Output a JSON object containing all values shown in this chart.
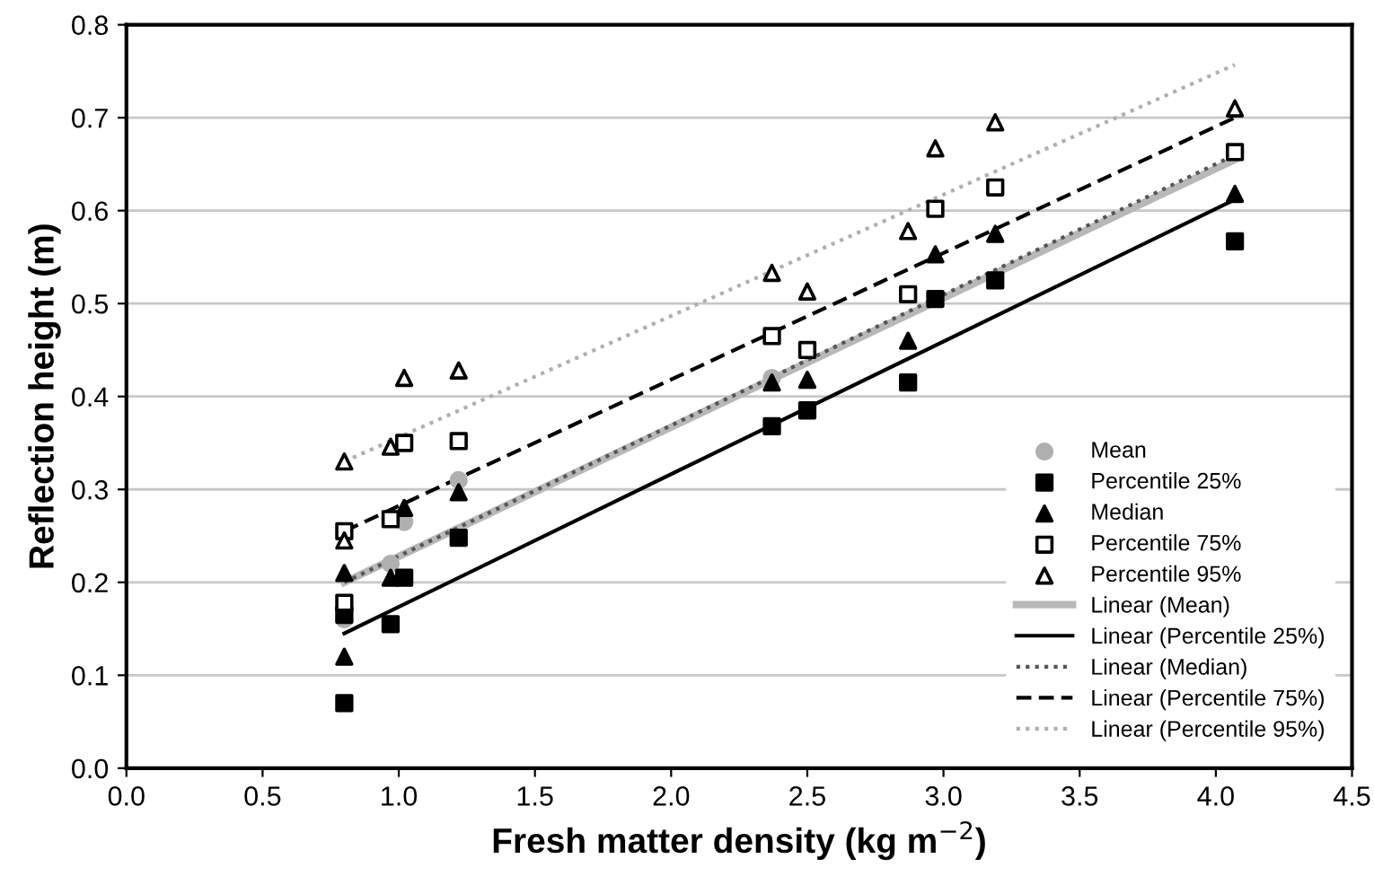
{
  "chart_data": {
    "type": "scatter",
    "xlabel": "Fresh matter density (kg m$^{−2}$)",
    "ylabel": "Reflection height (m)",
    "xlim": [
      0,
      4.5
    ],
    "xticks": [
      {
        "value": 0,
        "label": "0.0"
      },
      0.5,
      {
        "value": 1,
        "label": "1.0"
      },
      1.5,
      {
        "value": 2,
        "label": "2.0"
      },
      2.5,
      {
        "value": 3,
        "label": "3.0"
      },
      3.5,
      {
        "value": 4,
        "label": "4.0"
      },
      4.5
    ],
    "ylim": [
      0,
      0.8
    ],
    "yticks": [
      {
        "value": 0,
        "label": "0.0"
      },
      0.1,
      0.2,
      0.3,
      0.4,
      0.5,
      0.6,
      0.7,
      0.8
    ],
    "grid": "y",
    "legend": "lower right",
    "series": [
      {
        "name": "Mean",
        "marker": "circle",
        "color": "#b0b0b0",
        "x": [
          0.8,
          0.97,
          1.02,
          1.22,
          2.37
        ],
        "values": [
          0.16,
          0.22,
          0.265,
          0.31,
          0.42
        ]
      },
      {
        "name": "Percentile 25%",
        "marker": "square",
        "color": "#000000",
        "x": [
          0.8,
          0.8,
          0.97,
          1.02,
          1.22,
          2.37,
          2.5,
          2.87,
          2.97,
          3.19,
          4.07
        ],
        "values": [
          0.07,
          0.165,
          0.155,
          0.205,
          0.248,
          0.368,
          0.385,
          0.415,
          0.505,
          0.525,
          0.567
        ]
      },
      {
        "name": "Median",
        "marker": "triangle",
        "color": "#000000",
        "x": [
          0.8,
          0.8,
          0.97,
          1.02,
          1.22,
          2.37,
          2.5,
          2.87,
          2.97,
          3.19,
          4.07
        ],
        "values": [
          0.12,
          0.21,
          0.205,
          0.28,
          0.297,
          0.415,
          0.418,
          0.46,
          0.553,
          0.575,
          0.618
        ]
      },
      {
        "name": "Percentile 75%",
        "marker": "square",
        "color": "#ffffff",
        "x": [
          0.8,
          0.8,
          0.97,
          1.02,
          1.22,
          2.37,
          2.5,
          2.87,
          2.97,
          3.19,
          4.07
        ],
        "values": [
          0.178,
          0.255,
          0.268,
          0.35,
          0.352,
          0.465,
          0.45,
          0.51,
          0.602,
          0.625,
          0.663
        ]
      },
      {
        "name": "Percentile 95%",
        "marker": "triangle",
        "color": "#ffffff",
        "x": [
          0.8,
          0.8,
          0.97,
          1.02,
          1.22,
          2.37,
          2.5,
          2.87,
          2.97,
          3.19,
          4.07
        ],
        "values": [
          0.245,
          0.33,
          0.346,
          0.42,
          0.428,
          0.533,
          0.513,
          0.578,
          0.667,
          0.695,
          0.71
        ]
      },
      {
        "name": "Linear (Mean)",
        "type": "line",
        "line_style": "solid",
        "color": "#b8b8b8",
        "x": [
          0.8,
          4.07
        ],
        "values": [
          0.2,
          0.655
        ]
      },
      {
        "name": "Linear (Percentile 25%)",
        "type": "line",
        "line_style": "solid",
        "color": "#000000",
        "x": [
          0.8,
          4.07
        ],
        "values": [
          0.145,
          0.612
        ]
      },
      {
        "name": "Linear (Median)",
        "type": "line",
        "line_style": "dotted",
        "color": "#555555",
        "x": [
          0.8,
          4.07
        ],
        "values": [
          0.2,
          0.66
        ]
      },
      {
        "name": "Linear (Percentile 75%)",
        "type": "line",
        "line_style": "dashed",
        "color": "#000000",
        "x": [
          0.8,
          4.07
        ],
        "values": [
          0.255,
          0.7
        ]
      },
      {
        "name": "Linear (Percentile 95%)",
        "type": "line",
        "line_style": "dotted",
        "color": "#b0b0b0",
        "x": [
          0.8,
          4.07
        ],
        "values": [
          0.33,
          0.757
        ]
      }
    ]
  }
}
